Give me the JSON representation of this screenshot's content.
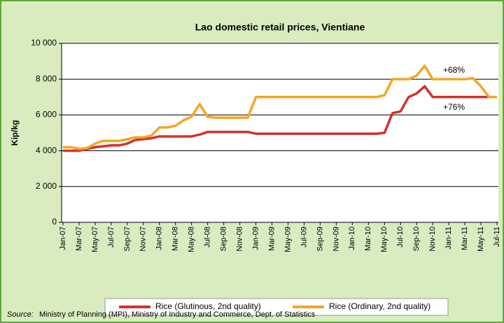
{
  "chart_data": {
    "type": "line",
    "title": "Lao domestic retail prices, Vientiane",
    "y_label": "Kip/kg",
    "categories": [
      "Jan-07",
      null,
      "Mar-07",
      null,
      "May-07",
      null,
      "Jul-07",
      null,
      "Sep-07",
      null,
      "Nov-07",
      null,
      "Jan-08",
      null,
      "Mar-08",
      null,
      "May-08",
      null,
      "Jul-08",
      null,
      "Sep-08",
      null,
      "Nov-08",
      null,
      "Jan-09",
      null,
      "Mar-09",
      null,
      "May-09",
      null,
      "Jul-09",
      null,
      "Sep-09",
      null,
      "Nov-09",
      null,
      "Jan-10",
      null,
      "Mar-10",
      null,
      "May-10",
      null,
      "Jul-10",
      null,
      "Sep-10",
      null,
      "Nov-10",
      null,
      "Jan-11",
      null,
      "Mar-11",
      null,
      "May-11",
      null,
      "Jul-11"
    ],
    "series": [
      {
        "name": "Rice (Glutinous, 2nd quality)",
        "color": "#d2322d",
        "values": [
          4000,
          4000,
          4000,
          4100,
          4200,
          4250,
          4300,
          4300,
          4400,
          4600,
          4650,
          4700,
          4800,
          4800,
          4800,
          4800,
          4800,
          4900,
          5050,
          5050,
          5050,
          5050,
          5050,
          5050,
          4950,
          4950,
          4950,
          4950,
          4950,
          4950,
          4950,
          4950,
          4950,
          4950,
          4950,
          4950,
          4950,
          4950,
          4950,
          4950,
          5000,
          6100,
          6200,
          7000,
          7200,
          7600,
          7000,
          7000,
          7000,
          7000,
          7000,
          7000,
          7000,
          7000,
          7000
        ]
      },
      {
        "name": "Rice (Ordinary, 2nd quality)",
        "color": "#f5a623",
        "values": [
          4200,
          4200,
          4100,
          4150,
          4400,
          4550,
          4550,
          4550,
          4650,
          4750,
          4750,
          4850,
          5300,
          5300,
          5400,
          5700,
          5900,
          6600,
          5900,
          5850,
          5850,
          5850,
          5850,
          5850,
          7000,
          7000,
          7000,
          7000,
          7000,
          7000,
          7000,
          7000,
          7000,
          7000,
          7000,
          7000,
          7000,
          7000,
          7000,
          7000,
          7100,
          8000,
          8000,
          8000,
          8200,
          8750,
          8000,
          8000,
          8000,
          8000,
          8000,
          8050,
          7600,
          7000,
          7000
        ]
      }
    ],
    "ylim": [
      0,
      10000
    ],
    "yticks": [
      0,
      {
        "value": 2000,
        "label": "2 000"
      },
      {
        "value": 4000,
        "label": "4 000"
      },
      {
        "value": 6000,
        "label": "6 000"
      },
      {
        "value": 8000,
        "label": "8 000"
      },
      {
        "value": 10000,
        "label": "10 000"
      }
    ],
    "grid": true,
    "annotations": [
      "+68%",
      "+76%"
    ],
    "source_label": "Source:",
    "source": "Ministry of Planning (MPI), Ministry of Industry and Commerce, Dept. of Statistics"
  }
}
